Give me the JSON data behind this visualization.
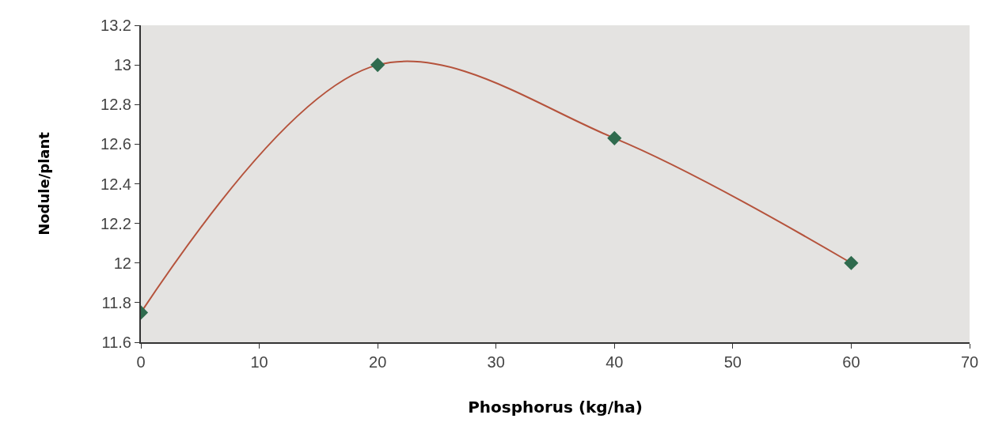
{
  "chart_data": {
    "type": "line",
    "xlabel": "Phosphorus (kg/ha)",
    "ylabel": "Nodule/plant",
    "x": [
      0,
      20,
      40,
      60
    ],
    "series": [
      {
        "color": "#b5533c",
        "values": [
          11.75,
          13.0,
          12.63,
          12.0
        ]
      }
    ],
    "xlim": [
      0,
      70
    ],
    "xticks": [
      0,
      10,
      20,
      30,
      40,
      50,
      60,
      70
    ],
    "ylim": [
      11.6,
      13.2
    ],
    "yticks": [
      11.6,
      11.8,
      12,
      12.2,
      12.4,
      12.6,
      12.8,
      13,
      13.2
    ],
    "grid": false,
    "legend": false,
    "marker": "diamond",
    "line_style": "solid"
  }
}
